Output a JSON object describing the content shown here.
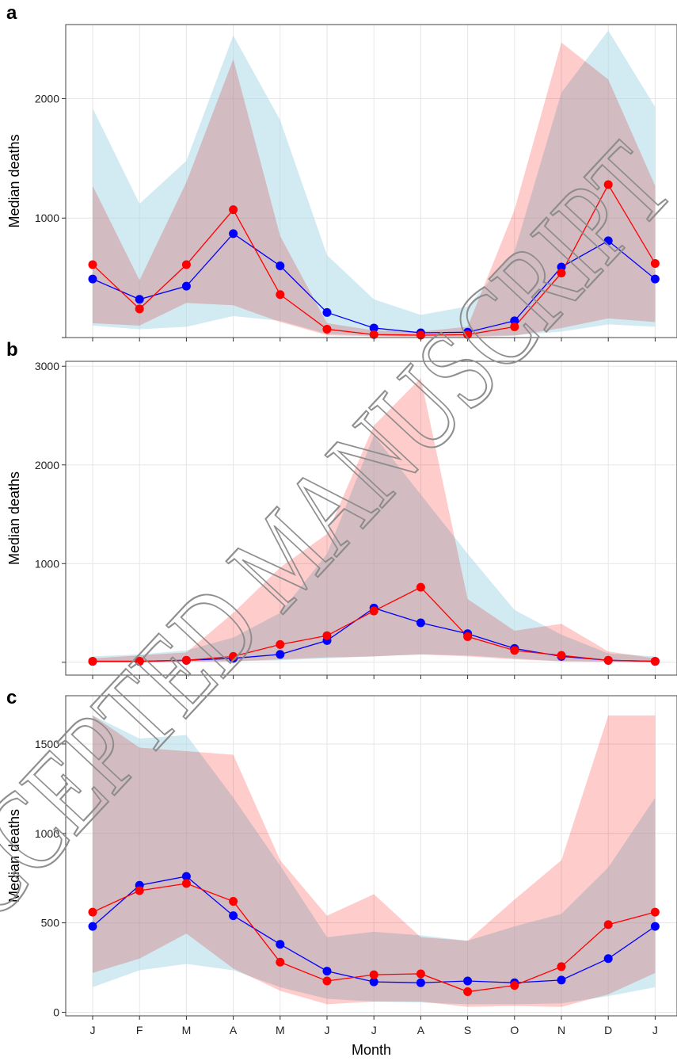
{
  "chart_data": [
    {
      "panel_label": "a",
      "type": "line",
      "categories": [
        "J",
        "F",
        "M",
        "A",
        "M",
        "J",
        "J",
        "A",
        "S",
        "O",
        "N",
        "D",
        "J"
      ],
      "ylabel": "Median deaths",
      "xlabel": "",
      "ylim": [
        0,
        2620
      ],
      "yticks": [
        0,
        1000,
        2000
      ],
      "ytick_labels": [
        "",
        "1000",
        "2000"
      ],
      "show_x_tick_labels": false,
      "grid": true,
      "series": [
        {
          "color": "#0000ff",
          "band_color": "#add8e6",
          "values": [
            490,
            320,
            430,
            870,
            600,
            210,
            80,
            40,
            45,
            140,
            590,
            810,
            490
          ],
          "lower": [
            100,
            70,
            90,
            180,
            140,
            30,
            15,
            10,
            10,
            20,
            50,
            110,
            90
          ],
          "upper": [
            1920,
            1120,
            1480,
            2530,
            1820,
            690,
            320,
            190,
            260,
            720,
            2050,
            2570,
            1930
          ]
        },
        {
          "color": "#ff0000",
          "band_color": "#ff9999",
          "values": [
            610,
            240,
            610,
            1070,
            360,
            70,
            25,
            20,
            25,
            90,
            540,
            1280,
            620
          ],
          "lower": [
            120,
            100,
            290,
            270,
            130,
            20,
            10,
            5,
            5,
            15,
            80,
            160,
            130
          ],
          "upper": [
            1270,
            480,
            1300,
            2330,
            850,
            120,
            60,
            50,
            90,
            1070,
            2470,
            2160,
            1270
          ]
        }
      ]
    },
    {
      "panel_label": "b",
      "type": "line",
      "categories": [
        "J",
        "F",
        "M",
        "A",
        "M",
        "J",
        "J",
        "A",
        "S",
        "O",
        "N",
        "D",
        "J"
      ],
      "ylabel": "Median deaths",
      "xlabel": "",
      "ylim": [
        -130,
        3050
      ],
      "yticks": [
        0,
        1000,
        2000,
        3000
      ],
      "ytick_labels": [
        "",
        "1000",
        "2000",
        "3000"
      ],
      "show_x_tick_labels": false,
      "grid": true,
      "series": [
        {
          "color": "#0000ff",
          "band_color": "#add8e6",
          "values": [
            10,
            10,
            20,
            40,
            80,
            220,
            550,
            400,
            290,
            140,
            60,
            20,
            10
          ],
          "lower": [
            0,
            0,
            5,
            10,
            20,
            40,
            60,
            80,
            70,
            40,
            10,
            5,
            0
          ],
          "upper": [
            60,
            80,
            120,
            250,
            500,
            1100,
            2300,
            1700,
            1100,
            530,
            280,
            90,
            60
          ]
        },
        {
          "color": "#ff0000",
          "band_color": "#ff9999",
          "values": [
            10,
            10,
            20,
            60,
            180,
            270,
            520,
            760,
            260,
            120,
            70,
            20,
            10
          ],
          "lower": [
            0,
            0,
            5,
            10,
            30,
            50,
            60,
            80,
            60,
            30,
            10,
            5,
            0
          ],
          "upper": [
            40,
            70,
            100,
            500,
            960,
            1300,
            2400,
            2880,
            640,
            320,
            390,
            110,
            40
          ]
        }
      ]
    },
    {
      "panel_label": "c",
      "type": "line",
      "categories": [
        "J",
        "F",
        "M",
        "A",
        "M",
        "J",
        "J",
        "A",
        "S",
        "O",
        "N",
        "D",
        "J"
      ],
      "ylabel": "Median deaths",
      "xlabel": "Month",
      "ylim": [
        -20,
        1770
      ],
      "yticks": [
        0,
        500,
        1000,
        1500
      ],
      "ytick_labels": [
        "0",
        "500",
        "1000",
        "1500"
      ],
      "show_x_tick_labels": true,
      "grid": true,
      "series": [
        {
          "color": "#0000ff",
          "band_color": "#add8e6",
          "values": [
            480,
            710,
            760,
            540,
            380,
            230,
            170,
            165,
            175,
            165,
            180,
            300,
            480
          ],
          "lower": [
            140,
            235,
            270,
            235,
            140,
            75,
            60,
            55,
            45,
            45,
            50,
            90,
            140
          ],
          "upper": [
            1660,
            1530,
            1550,
            1200,
            820,
            420,
            450,
            430,
            400,
            480,
            550,
            810,
            1200
          ]
        },
        {
          "color": "#ff0000",
          "band_color": "#ff9999",
          "values": [
            560,
            680,
            720,
            620,
            280,
            175,
            210,
            215,
            115,
            150,
            255,
            490,
            560
          ],
          "lower": [
            220,
            300,
            440,
            245,
            120,
            45,
            60,
            60,
            30,
            35,
            30,
            100,
            220
          ],
          "upper": [
            1660,
            1480,
            1460,
            1440,
            850,
            540,
            660,
            420,
            400,
            630,
            850,
            1660,
            1660
          ]
        }
      ]
    }
  ],
  "watermark": {
    "text": "ACCEPTED MANUSCRIPT",
    "color": "#8a8a8a"
  }
}
